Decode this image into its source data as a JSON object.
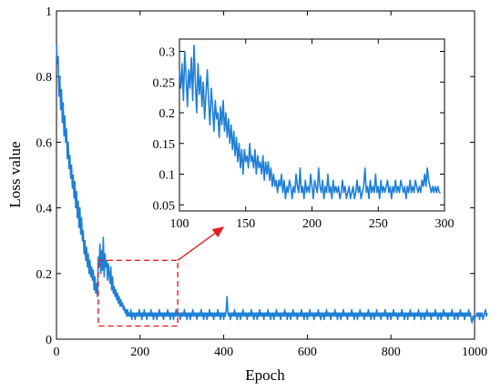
{
  "chart_data": [
    {
      "id": "main",
      "type": "line",
      "title": "",
      "xlabel": "Epoch",
      "ylabel": "Loss value",
      "xlim": [
        0,
        1000
      ],
      "ylim": [
        0,
        1
      ],
      "xticks": [
        0,
        200,
        400,
        600,
        800,
        1000
      ],
      "yticks": [
        0,
        0.2,
        0.4,
        0.6,
        0.8,
        1
      ],
      "xtick_labels": [
        "0",
        "200",
        "400",
        "600",
        "800",
        "1000"
      ],
      "ytick_labels": [
        "0",
        "0.2",
        "0.4",
        "0.6",
        "0.8",
        "1"
      ],
      "series_color": "#1f7fd6",
      "x_step": 2,
      "series": [
        {
          "values": [
            0.9,
            0.84,
            0.86,
            0.74,
            0.8,
            0.7,
            0.76,
            0.66,
            0.72,
            0.62,
            0.68,
            0.6,
            0.64,
            0.55,
            0.6,
            0.52,
            0.56,
            0.49,
            0.53,
            0.46,
            0.5,
            0.43,
            0.48,
            0.4,
            0.45,
            0.37,
            0.42,
            0.34,
            0.4,
            0.32,
            0.37,
            0.3,
            0.33,
            0.26,
            0.3,
            0.24,
            0.28,
            0.22,
            0.26,
            0.2,
            0.24,
            0.19,
            0.22,
            0.18,
            0.21,
            0.15,
            0.19,
            0.14,
            0.17,
            0.13,
            0.25,
            0.22,
            0.29,
            0.2,
            0.27,
            0.21,
            0.31,
            0.19,
            0.26,
            0.22,
            0.24,
            0.18,
            0.23,
            0.2,
            0.17,
            0.22,
            0.15,
            0.19,
            0.14,
            0.16,
            0.13,
            0.15,
            0.12,
            0.14,
            0.11,
            0.13,
            0.1,
            0.12,
            0.1,
            0.11,
            0.09,
            0.1,
            0.08,
            0.09,
            0.07,
            0.09,
            0.07,
            0.08,
            0.07,
            0.09,
            0.06,
            0.08,
            0.07,
            0.08,
            0.06,
            0.08,
            0.07,
            0.08,
            0.07,
            0.09,
            0.07,
            0.08,
            0.06,
            0.08,
            0.07,
            0.09,
            0.07,
            0.08,
            0.06,
            0.08,
            0.07,
            0.08,
            0.07,
            0.09,
            0.07,
            0.08,
            0.06,
            0.08,
            0.07,
            0.08,
            0.06,
            0.08,
            0.07,
            0.09,
            0.07,
            0.08,
            0.07,
            0.08,
            0.06,
            0.08,
            0.07,
            0.08,
            0.07,
            0.09,
            0.07,
            0.08,
            0.06,
            0.08,
            0.07,
            0.08,
            0.06,
            0.08,
            0.07,
            0.09,
            0.07,
            0.08,
            0.07,
            0.08,
            0.06,
            0.08,
            0.07,
            0.08,
            0.07,
            0.09,
            0.07,
            0.08,
            0.06,
            0.08,
            0.07,
            0.08,
            0.06,
            0.08,
            0.07,
            0.09,
            0.07,
            0.08,
            0.07,
            0.08,
            0.06,
            0.08,
            0.07,
            0.08,
            0.07,
            0.09,
            0.07,
            0.08,
            0.06,
            0.08,
            0.07,
            0.08,
            0.06,
            0.08,
            0.07,
            0.09,
            0.07,
            0.08,
            0.07,
            0.08,
            0.06,
            0.08,
            0.07,
            0.08,
            0.07,
            0.09,
            0.07,
            0.08,
            0.06,
            0.08,
            0.07,
            0.08,
            0.06,
            0.08,
            0.07,
            0.09,
            0.13,
            0.08,
            0.07,
            0.08,
            0.06,
            0.08,
            0.07,
            0.08,
            0.07,
            0.09,
            0.07,
            0.08,
            0.06,
            0.08,
            0.07,
            0.08,
            0.06,
            0.08,
            0.07,
            0.09,
            0.07,
            0.08,
            0.07,
            0.08,
            0.06,
            0.08,
            0.07,
            0.08,
            0.07,
            0.09,
            0.07,
            0.08,
            0.06,
            0.08,
            0.07,
            0.08,
            0.06,
            0.08,
            0.07,
            0.09,
            0.07,
            0.08,
            0.07,
            0.08,
            0.06,
            0.08,
            0.07,
            0.08,
            0.07,
            0.09,
            0.07,
            0.08,
            0.06,
            0.08,
            0.07,
            0.08,
            0.06,
            0.08,
            0.07,
            0.09,
            0.07,
            0.08,
            0.07,
            0.08,
            0.06,
            0.08,
            0.07,
            0.08,
            0.07,
            0.09,
            0.07,
            0.08,
            0.06,
            0.08,
            0.07,
            0.08,
            0.06,
            0.08,
            0.07,
            0.09,
            0.07,
            0.08,
            0.07,
            0.08,
            0.06,
            0.08,
            0.07,
            0.08,
            0.07,
            0.09,
            0.07,
            0.08,
            0.06,
            0.08,
            0.07,
            0.08,
            0.06,
            0.08,
            0.07,
            0.09,
            0.07,
            0.08,
            0.07,
            0.08,
            0.06,
            0.08,
            0.07,
            0.08,
            0.07,
            0.09,
            0.07,
            0.08,
            0.06,
            0.08,
            0.07,
            0.08,
            0.06,
            0.08,
            0.07,
            0.09,
            0.07,
            0.08,
            0.07,
            0.08,
            0.06,
            0.08,
            0.07,
            0.08,
            0.07,
            0.09,
            0.07,
            0.08,
            0.06,
            0.08,
            0.07,
            0.08,
            0.06,
            0.08,
            0.07,
            0.09,
            0.07,
            0.08,
            0.07,
            0.08,
            0.06,
            0.08,
            0.07,
            0.08,
            0.07,
            0.09,
            0.07,
            0.08,
            0.06,
            0.08,
            0.07,
            0.08,
            0.06,
            0.08,
            0.07,
            0.09,
            0.07,
            0.08,
            0.07,
            0.08,
            0.06,
            0.08,
            0.07,
            0.08,
            0.07,
            0.09,
            0.07,
            0.08,
            0.06,
            0.08,
            0.07,
            0.08,
            0.06,
            0.08,
            0.07,
            0.09,
            0.07,
            0.08,
            0.07,
            0.08,
            0.06,
            0.08,
            0.07,
            0.08,
            0.07,
            0.09,
            0.07,
            0.08,
            0.06,
            0.08,
            0.07,
            0.08,
            0.06,
            0.08,
            0.07,
            0.09,
            0.07,
            0.08,
            0.07,
            0.08,
            0.06,
            0.08,
            0.07,
            0.08,
            0.07,
            0.09,
            0.07,
            0.08,
            0.06,
            0.08,
            0.07,
            0.08,
            0.06,
            0.08,
            0.07,
            0.09,
            0.07,
            0.08,
            0.07,
            0.08,
            0.06,
            0.08,
            0.07,
            0.08,
            0.07,
            0.09,
            0.07,
            0.08,
            0.06,
            0.08,
            0.07,
            0.08,
            0.06,
            0.08,
            0.07,
            0.09,
            0.07,
            0.08,
            0.07,
            0.08,
            0.06,
            0.08,
            0.07,
            0.08,
            0.07,
            0.09,
            0.07,
            0.08,
            0.06,
            0.08,
            0.07,
            0.08,
            0.06,
            0.08,
            0.07,
            0.09,
            0.07,
            0.08,
            0.07,
            0.08,
            0.06,
            0.08,
            0.07,
            0.08,
            0.07,
            0.09,
            0.07,
            0.08,
            0.06,
            0.08,
            0.07,
            0.08,
            0.06,
            0.08,
            0.07,
            0.09,
            0.07,
            0.08,
            0.07,
            0.08,
            0.06,
            0.08,
            0.07,
            0.08,
            0.07,
            0.09,
            0.07,
            0.08,
            0.06,
            0.05,
            0.07,
            0.06,
            0.06,
            0.07,
            0.07,
            0.08,
            0.07,
            0.08,
            0.06,
            0.08,
            0.07,
            0.08,
            0.06,
            0.07,
            0.08,
            0.09,
            0.07,
            0.08
          ]
        }
      ],
      "zoom_region": {
        "xlim": [
          100,
          290
        ],
        "ylim": [
          0.04,
          0.24
        ]
      },
      "highlight_color": "#e02020"
    },
    {
      "id": "inset",
      "type": "line",
      "title": "",
      "xlabel": "",
      "ylabel": "",
      "xlim": [
        100,
        300
      ],
      "ylim": [
        0.04,
        0.32
      ],
      "xticks": [
        100,
        150,
        200,
        250,
        300
      ],
      "yticks": [
        0.05,
        0.1,
        0.15,
        0.2,
        0.25,
        0.3
      ],
      "xtick_labels": [
        "100",
        "150",
        "200",
        "250",
        "300"
      ],
      "ytick_labels": [
        "0.05",
        "0.1",
        "0.15",
        "0.2",
        "0.25",
        "0.3"
      ],
      "series_color": "#1f7fd6",
      "x_start": 100,
      "x_step": 1,
      "series": [
        {
          "values": [
            0.27,
            0.24,
            0.28,
            0.22,
            0.3,
            0.26,
            0.21,
            0.27,
            0.24,
            0.29,
            0.22,
            0.31,
            0.25,
            0.2,
            0.28,
            0.23,
            0.26,
            0.21,
            0.25,
            0.19,
            0.23,
            0.27,
            0.22,
            0.18,
            0.24,
            0.21,
            0.17,
            0.22,
            0.19,
            0.2,
            0.16,
            0.21,
            0.18,
            0.22,
            0.17,
            0.2,
            0.16,
            0.19,
            0.15,
            0.18,
            0.14,
            0.17,
            0.13,
            0.16,
            0.12,
            0.15,
            0.11,
            0.14,
            0.1,
            0.14,
            0.12,
            0.13,
            0.11,
            0.15,
            0.12,
            0.13,
            0.11,
            0.14,
            0.1,
            0.13,
            0.11,
            0.12,
            0.1,
            0.13,
            0.09,
            0.12,
            0.1,
            0.12,
            0.09,
            0.11,
            0.08,
            0.1,
            0.08,
            0.09,
            0.07,
            0.09,
            0.08,
            0.1,
            0.07,
            0.09,
            0.06,
            0.08,
            0.07,
            0.09,
            0.08,
            0.06,
            0.08,
            0.07,
            0.1,
            0.08,
            0.07,
            0.11,
            0.07,
            0.08,
            0.06,
            0.09,
            0.07,
            0.08,
            0.07,
            0.1,
            0.08,
            0.06,
            0.09,
            0.08,
            0.07,
            0.11,
            0.08,
            0.07,
            0.09,
            0.06,
            0.08,
            0.07,
            0.1,
            0.07,
            0.08,
            0.06,
            0.09,
            0.07,
            0.08,
            0.07,
            0.08,
            0.06,
            0.07,
            0.09,
            0.07,
            0.08,
            0.06,
            0.07,
            0.08,
            0.06,
            0.07,
            0.08,
            0.06,
            0.07,
            0.09,
            0.07,
            0.08,
            0.06,
            0.07,
            0.08,
            0.11,
            0.07,
            0.08,
            0.06,
            0.09,
            0.07,
            0.08,
            0.07,
            0.1,
            0.07,
            0.08,
            0.06,
            0.09,
            0.07,
            0.08,
            0.07,
            0.08,
            0.09,
            0.07,
            0.08,
            0.06,
            0.08,
            0.07,
            0.09,
            0.07,
            0.08,
            0.07,
            0.09,
            0.08,
            0.07,
            0.08,
            0.06,
            0.08,
            0.07,
            0.09,
            0.07,
            0.08,
            0.07,
            0.09,
            0.08,
            0.07,
            0.08,
            0.07,
            0.09,
            0.08,
            0.1,
            0.08,
            0.11,
            0.09,
            0.08,
            0.07,
            0.08,
            0.07,
            0.08,
            0.07,
            0.08,
            0.07,
            0.07
          ]
        }
      ]
    }
  ]
}
